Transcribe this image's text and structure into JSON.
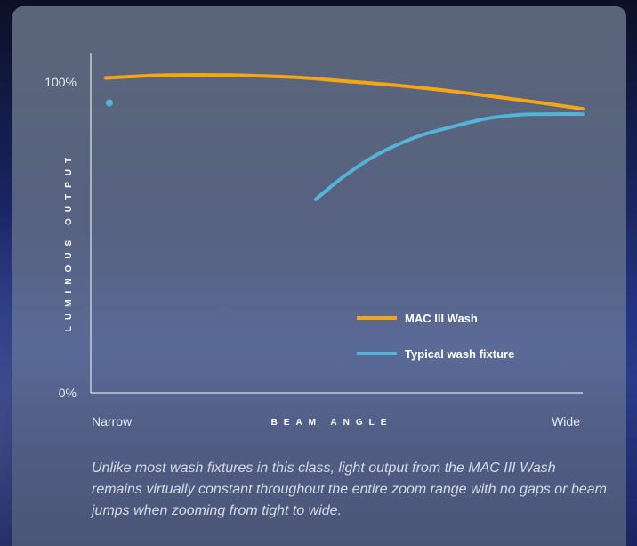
{
  "chart_data": {
    "type": "line",
    "xlabel": "BEAM ANGLE",
    "ylabel": "LUMINOUS OUTPUT",
    "x_tick_labels": [
      "Narrow",
      "Wide"
    ],
    "y_tick_labels": [
      "0%",
      "100%"
    ],
    "xlim": [
      0,
      100
    ],
    "ylim": [
      0,
      100
    ],
    "grid": false,
    "legend_position": "bottom-right",
    "series": [
      {
        "name": "MAC III Wash",
        "color": "#f5a614",
        "x": [
          0,
          10,
          20,
          30,
          40,
          50,
          60,
          70,
          80,
          90,
          100
        ],
        "y": [
          101,
          101.8,
          102,
          101.8,
          101.2,
          100,
          98.8,
          97.2,
          95.3,
          93.3,
          91.1
        ]
      },
      {
        "name": "Typical wash fixture",
        "color": "#55b3d9",
        "x": [
          0
        ],
        "y": [
          93
        ],
        "marker": true
      },
      {
        "name": "Typical wash fixture segment",
        "color": "#55b3d9",
        "x": [
          44,
          50,
          57,
          65,
          73,
          80,
          87,
          93,
          100
        ],
        "y": [
          62,
          69.5,
          76.5,
          82,
          85.5,
          88,
          89.2,
          89.4,
          89.4
        ]
      }
    ]
  },
  "caption": "Unlike most wash fixtures in this class, light output from the MAC III Wash remains virtually constant throughout the entire zoom range with no gaps or beam jumps when zooming from tight to wide.",
  "colors": {
    "mac_series": "#f5a614",
    "typical_series": "#55b3d9",
    "axis": "#ffffff"
  }
}
